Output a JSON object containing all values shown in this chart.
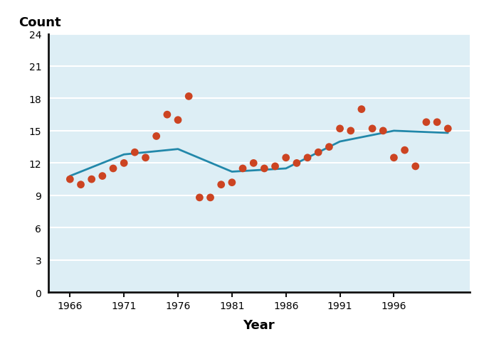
{
  "scatter_years": [
    1966,
    1967,
    1968,
    1969,
    1970,
    1971,
    1972,
    1973,
    1974,
    1975,
    1976,
    1977,
    1978,
    1979,
    1980,
    1981,
    1982,
    1983,
    1984,
    1985,
    1986,
    1987,
    1988,
    1989,
    1990,
    1991,
    1992,
    1993,
    1994,
    1995,
    1996,
    1997,
    1998,
    1999,
    2000,
    2001
  ],
  "scatter_counts": [
    10.5,
    10.0,
    10.5,
    10.8,
    11.5,
    12.0,
    13.0,
    12.5,
    14.5,
    16.5,
    16.0,
    18.2,
    8.8,
    8.8,
    10.0,
    10.2,
    11.5,
    12.0,
    11.5,
    11.7,
    12.5,
    12.0,
    12.5,
    13.0,
    13.5,
    15.2,
    15.0,
    17.0,
    15.2,
    15.0,
    12.5,
    13.2,
    11.7,
    15.8,
    15.8,
    15.2
  ],
  "line_years": [
    1966,
    1971,
    1976,
    1981,
    1986,
    1991,
    1996,
    2001
  ],
  "line_counts": [
    10.8,
    12.8,
    13.3,
    11.2,
    11.5,
    14.0,
    15.0,
    14.8
  ],
  "scatter_color": "#cc4422",
  "line_color": "#2288aa",
  "bg_color": "#ddeef5",
  "grid_color": "#ffffff",
  "xlabel": "Year",
  "ylabel": "Count",
  "xlim": [
    1964,
    2003
  ],
  "ylim": [
    0,
    24
  ],
  "yticks": [
    0,
    3,
    6,
    9,
    12,
    15,
    18,
    21,
    24
  ],
  "xticks": [
    1966,
    1971,
    1976,
    1981,
    1986,
    1991,
    1996
  ],
  "xlabel_fontsize": 13,
  "ylabel_fontsize": 13,
  "tick_fontsize": 10,
  "line_width": 2.0,
  "marker_size": 60
}
